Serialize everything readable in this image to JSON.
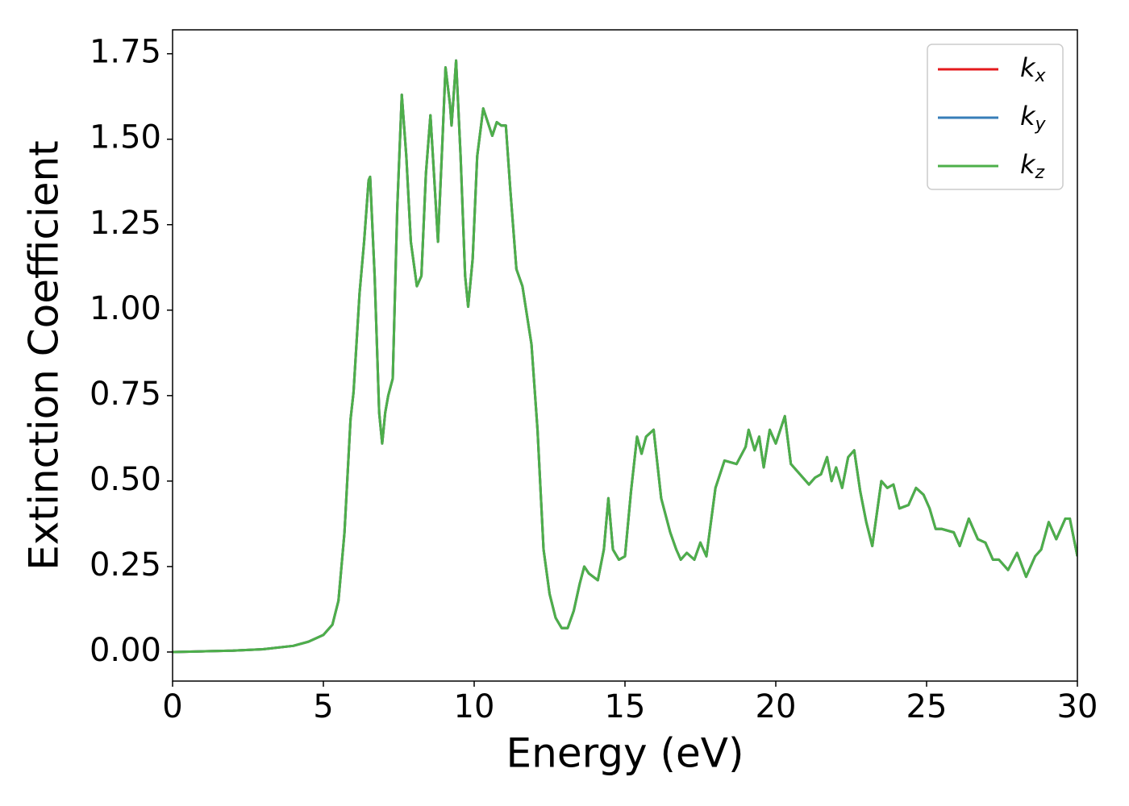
{
  "chart_data": {
    "type": "line",
    "xlabel": "Energy (eV)",
    "ylabel": "Extinction Coefficient",
    "xlim": [
      0,
      30
    ],
    "xticks": [
      0,
      5,
      10,
      15,
      20,
      25,
      30
    ],
    "ylim": [
      -0.085,
      1.82
    ],
    "yticks": [
      {
        "value": 0,
        "label": "0.00"
      },
      0.25,
      {
        "value": 0.5,
        "label": "0.50"
      },
      0.75,
      {
        "value": 1,
        "label": "1.00"
      },
      1.25,
      {
        "value": 1.5,
        "label": "1.50"
      },
      1.75
    ],
    "grid": false,
    "legend": "upper right",
    "x": [
      0,
      1,
      2,
      3,
      4,
      4.5,
      5,
      5.3,
      5.5,
      5.7,
      5.9,
      6.0,
      6.2,
      6.35,
      6.5,
      6.55,
      6.7,
      6.85,
      6.95,
      7.05,
      7.15,
      7.3,
      7.45,
      7.6,
      7.75,
      7.9,
      8.1,
      8.25,
      8.4,
      8.55,
      8.7,
      8.8,
      8.95,
      9.05,
      9.2,
      9.25,
      9.4,
      9.55,
      9.7,
      9.8,
      9.95,
      10.1,
      10.3,
      10.45,
      10.6,
      10.75,
      10.9,
      11.05,
      11.2,
      11.4,
      11.6,
      11.9,
      12.1,
      12.3,
      12.5,
      12.7,
      12.9,
      13.1,
      13.3,
      13.5,
      13.65,
      13.8,
      14.1,
      14.3,
      14.45,
      14.6,
      14.8,
      15.0,
      15.2,
      15.4,
      15.55,
      15.7,
      15.95,
      16.2,
      16.5,
      16.7,
      16.85,
      17.05,
      17.3,
      17.5,
      17.7,
      18.0,
      18.3,
      18.7,
      19.0,
      19.1,
      19.3,
      19.45,
      19.6,
      19.8,
      20.0,
      20.3,
      20.5,
      20.8,
      21.1,
      21.3,
      21.5,
      21.7,
      21.85,
      22.0,
      22.2,
      22.4,
      22.6,
      22.8,
      23.0,
      23.2,
      23.5,
      23.7,
      23.9,
      24.1,
      24.4,
      24.65,
      24.9,
      25.1,
      25.3,
      25.5,
      25.9,
      26.1,
      26.4,
      26.7,
      26.95,
      27.2,
      27.4,
      27.7,
      28.0,
      28.3,
      28.6,
      28.8,
      29.05,
      29.3,
      29.6,
      29.75,
      30
    ],
    "series": [
      {
        "name": "kx",
        "color": "#e41a1c",
        "values": [
          0,
          0.002,
          0.004,
          0.008,
          0.018,
          0.03,
          0.05,
          0.08,
          0.15,
          0.35,
          0.68,
          0.76,
          1.05,
          1.2,
          1.38,
          1.39,
          1.1,
          0.7,
          0.61,
          0.7,
          0.75,
          0.8,
          1.3,
          1.63,
          1.45,
          1.2,
          1.07,
          1.1,
          1.4,
          1.57,
          1.35,
          1.2,
          1.5,
          1.71,
          1.6,
          1.54,
          1.73,
          1.45,
          1.1,
          1.01,
          1.15,
          1.45,
          1.59,
          1.55,
          1.51,
          1.55,
          1.54,
          1.54,
          1.35,
          1.12,
          1.07,
          0.9,
          0.65,
          0.3,
          0.17,
          0.1,
          0.07,
          0.07,
          0.12,
          0.2,
          0.25,
          0.23,
          0.21,
          0.3,
          0.45,
          0.3,
          0.27,
          0.28,
          0.47,
          0.63,
          0.58,
          0.63,
          0.65,
          0.45,
          0.35,
          0.3,
          0.27,
          0.29,
          0.27,
          0.32,
          0.28,
          0.48,
          0.56,
          0.55,
          0.6,
          0.65,
          0.59,
          0.63,
          0.54,
          0.65,
          0.61,
          0.69,
          0.55,
          0.52,
          0.49,
          0.51,
          0.52,
          0.57,
          0.5,
          0.54,
          0.48,
          0.57,
          0.59,
          0.47,
          0.38,
          0.31,
          0.5,
          0.48,
          0.49,
          0.42,
          0.43,
          0.48,
          0.46,
          0.42,
          0.36,
          0.36,
          0.35,
          0.31,
          0.39,
          0.33,
          0.32,
          0.27,
          0.27,
          0.24,
          0.29,
          0.22,
          0.28,
          0.3,
          0.38,
          0.33,
          0.39,
          0.39,
          0.28
        ]
      },
      {
        "name": "ky",
        "color": "#377eb8",
        "values": [
          0,
          0.002,
          0.004,
          0.008,
          0.018,
          0.03,
          0.05,
          0.08,
          0.15,
          0.35,
          0.68,
          0.76,
          1.05,
          1.2,
          1.38,
          1.39,
          1.1,
          0.7,
          0.61,
          0.7,
          0.75,
          0.8,
          1.3,
          1.63,
          1.45,
          1.2,
          1.07,
          1.1,
          1.4,
          1.57,
          1.35,
          1.2,
          1.5,
          1.71,
          1.6,
          1.54,
          1.73,
          1.45,
          1.1,
          1.01,
          1.15,
          1.45,
          1.59,
          1.55,
          1.51,
          1.55,
          1.54,
          1.54,
          1.35,
          1.12,
          1.07,
          0.9,
          0.65,
          0.3,
          0.17,
          0.1,
          0.07,
          0.07,
          0.12,
          0.2,
          0.25,
          0.23,
          0.21,
          0.3,
          0.45,
          0.3,
          0.27,
          0.28,
          0.47,
          0.63,
          0.58,
          0.63,
          0.65,
          0.45,
          0.35,
          0.3,
          0.27,
          0.29,
          0.27,
          0.32,
          0.28,
          0.48,
          0.56,
          0.55,
          0.6,
          0.65,
          0.59,
          0.63,
          0.54,
          0.65,
          0.61,
          0.69,
          0.55,
          0.52,
          0.49,
          0.51,
          0.52,
          0.57,
          0.5,
          0.54,
          0.48,
          0.57,
          0.59,
          0.47,
          0.38,
          0.31,
          0.5,
          0.48,
          0.49,
          0.42,
          0.43,
          0.48,
          0.46,
          0.42,
          0.36,
          0.36,
          0.35,
          0.31,
          0.39,
          0.33,
          0.32,
          0.27,
          0.27,
          0.24,
          0.29,
          0.22,
          0.28,
          0.3,
          0.38,
          0.33,
          0.39,
          0.39,
          0.28
        ]
      },
      {
        "name": "kz",
        "color": "#4daf4a",
        "values": [
          0,
          0.002,
          0.004,
          0.008,
          0.018,
          0.03,
          0.05,
          0.08,
          0.15,
          0.35,
          0.68,
          0.76,
          1.05,
          1.2,
          1.38,
          1.39,
          1.1,
          0.7,
          0.61,
          0.7,
          0.75,
          0.8,
          1.3,
          1.63,
          1.45,
          1.2,
          1.07,
          1.1,
          1.4,
          1.57,
          1.35,
          1.2,
          1.5,
          1.71,
          1.6,
          1.54,
          1.73,
          1.45,
          1.1,
          1.01,
          1.15,
          1.45,
          1.59,
          1.55,
          1.51,
          1.55,
          1.54,
          1.54,
          1.35,
          1.12,
          1.07,
          0.9,
          0.65,
          0.3,
          0.17,
          0.1,
          0.07,
          0.07,
          0.12,
          0.2,
          0.25,
          0.23,
          0.21,
          0.3,
          0.45,
          0.3,
          0.27,
          0.28,
          0.47,
          0.63,
          0.58,
          0.63,
          0.65,
          0.45,
          0.35,
          0.3,
          0.27,
          0.29,
          0.27,
          0.32,
          0.28,
          0.48,
          0.56,
          0.55,
          0.6,
          0.65,
          0.59,
          0.63,
          0.54,
          0.65,
          0.61,
          0.69,
          0.55,
          0.52,
          0.49,
          0.51,
          0.52,
          0.57,
          0.5,
          0.54,
          0.48,
          0.57,
          0.59,
          0.47,
          0.38,
          0.31,
          0.5,
          0.48,
          0.49,
          0.42,
          0.43,
          0.48,
          0.46,
          0.42,
          0.36,
          0.36,
          0.35,
          0.31,
          0.39,
          0.33,
          0.32,
          0.27,
          0.27,
          0.24,
          0.29,
          0.22,
          0.28,
          0.3,
          0.38,
          0.33,
          0.39,
          0.39,
          0.28
        ]
      }
    ]
  }
}
